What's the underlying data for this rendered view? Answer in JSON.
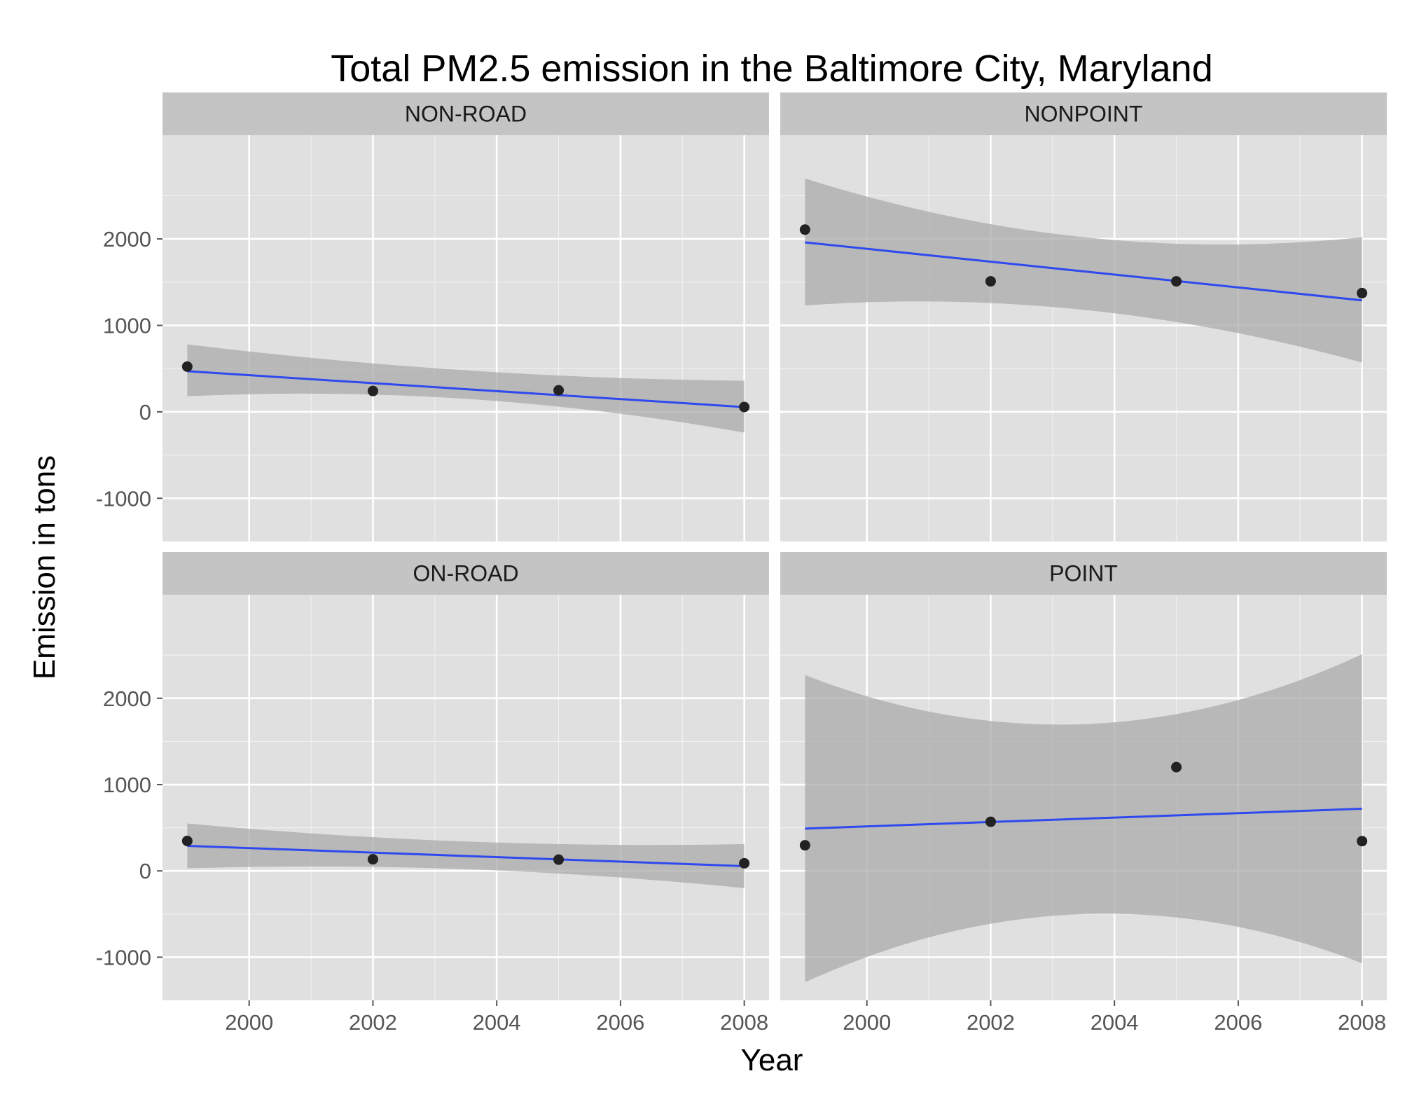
{
  "chart_data": {
    "type": "scatter",
    "title": "Total PM2.5 emission in the Baltimore City, Maryland",
    "xlabel": "Year",
    "ylabel": "Emission in tons",
    "xlim": [
      1998.6,
      2008.4
    ],
    "ylim": [
      -1500,
      3200
    ],
    "x_ticks": [
      2000,
      2002,
      2004,
      2006,
      2008
    ],
    "y_ticks": [
      -1000,
      0,
      1000,
      2000
    ],
    "grid": true,
    "smoother": "linear fit with confidence band",
    "colors": {
      "panel_background": "#e0e0e0",
      "strip_background": "#c4c4c4",
      "grid_major": "#ffffff",
      "points": "#222222",
      "fit_line": "#2f49ef",
      "confidence_band": "#a8a8a8"
    },
    "facets": [
      {
        "name": "NON-ROAD",
        "x": [
          1999,
          2002,
          2005,
          2008
        ],
        "y": [
          522.9,
          240.8,
          248.9,
          55.8
        ],
        "fit": [
          {
            "x": 1999,
            "y": 470
          },
          {
            "x": 2008,
            "y": 55
          }
        ],
        "band_upper": [
          {
            "x": 1999,
            "y": 780
          },
          {
            "x": 2003.5,
            "y": 480
          },
          {
            "x": 2008,
            "y": 360
          }
        ],
        "band_lower": [
          {
            "x": 1999,
            "y": 180
          },
          {
            "x": 2003.5,
            "y": 150
          },
          {
            "x": 2008,
            "y": -240
          }
        ]
      },
      {
        "name": "NONPOINT",
        "x": [
          1999,
          2002,
          2005,
          2008
        ],
        "y": [
          2107.6,
          1509.5,
          1509.5,
          1373.2
        ],
        "fit": [
          {
            "x": 1999,
            "y": 1960
          },
          {
            "x": 2008,
            "y": 1290
          }
        ],
        "band_upper": [
          {
            "x": 1999,
            "y": 2700
          },
          {
            "x": 2003.5,
            "y": 2020
          },
          {
            "x": 2008,
            "y": 2020
          }
        ],
        "band_lower": [
          {
            "x": 1999,
            "y": 1230
          },
          {
            "x": 2003.5,
            "y": 1180
          },
          {
            "x": 2008,
            "y": 570
          }
        ]
      },
      {
        "name": "ON-ROAD",
        "x": [
          1999,
          2002,
          2005,
          2008
        ],
        "y": [
          346.8,
          134.3,
          130.4,
          88.3
        ],
        "fit": [
          {
            "x": 1999,
            "y": 290
          },
          {
            "x": 2008,
            "y": 55
          }
        ],
        "band_upper": [
          {
            "x": 1999,
            "y": 550
          },
          {
            "x": 2003.5,
            "y": 340
          },
          {
            "x": 2008,
            "y": 310
          }
        ],
        "band_lower": [
          {
            "x": 1999,
            "y": 30
          },
          {
            "x": 2003.5,
            "y": 20
          },
          {
            "x": 2008,
            "y": -200
          }
        ]
      },
      {
        "name": "POINT",
        "x": [
          1999,
          2002,
          2005,
          2008
        ],
        "y": [
          296.8,
          569.3,
          1202.5,
          344.98
        ],
        "fit": [
          {
            "x": 1999,
            "y": 490
          },
          {
            "x": 2008,
            "y": 720
          }
        ],
        "band_upper": [
          {
            "x": 1999,
            "y": 2270
          },
          {
            "x": 2003.5,
            "y": 1700
          },
          {
            "x": 2008,
            "y": 2510
          }
        ],
        "band_lower": [
          {
            "x": 1999,
            "y": -1290
          },
          {
            "x": 2003.5,
            "y": -500
          },
          {
            "x": 2008,
            "y": -1070
          }
        ]
      }
    ]
  }
}
